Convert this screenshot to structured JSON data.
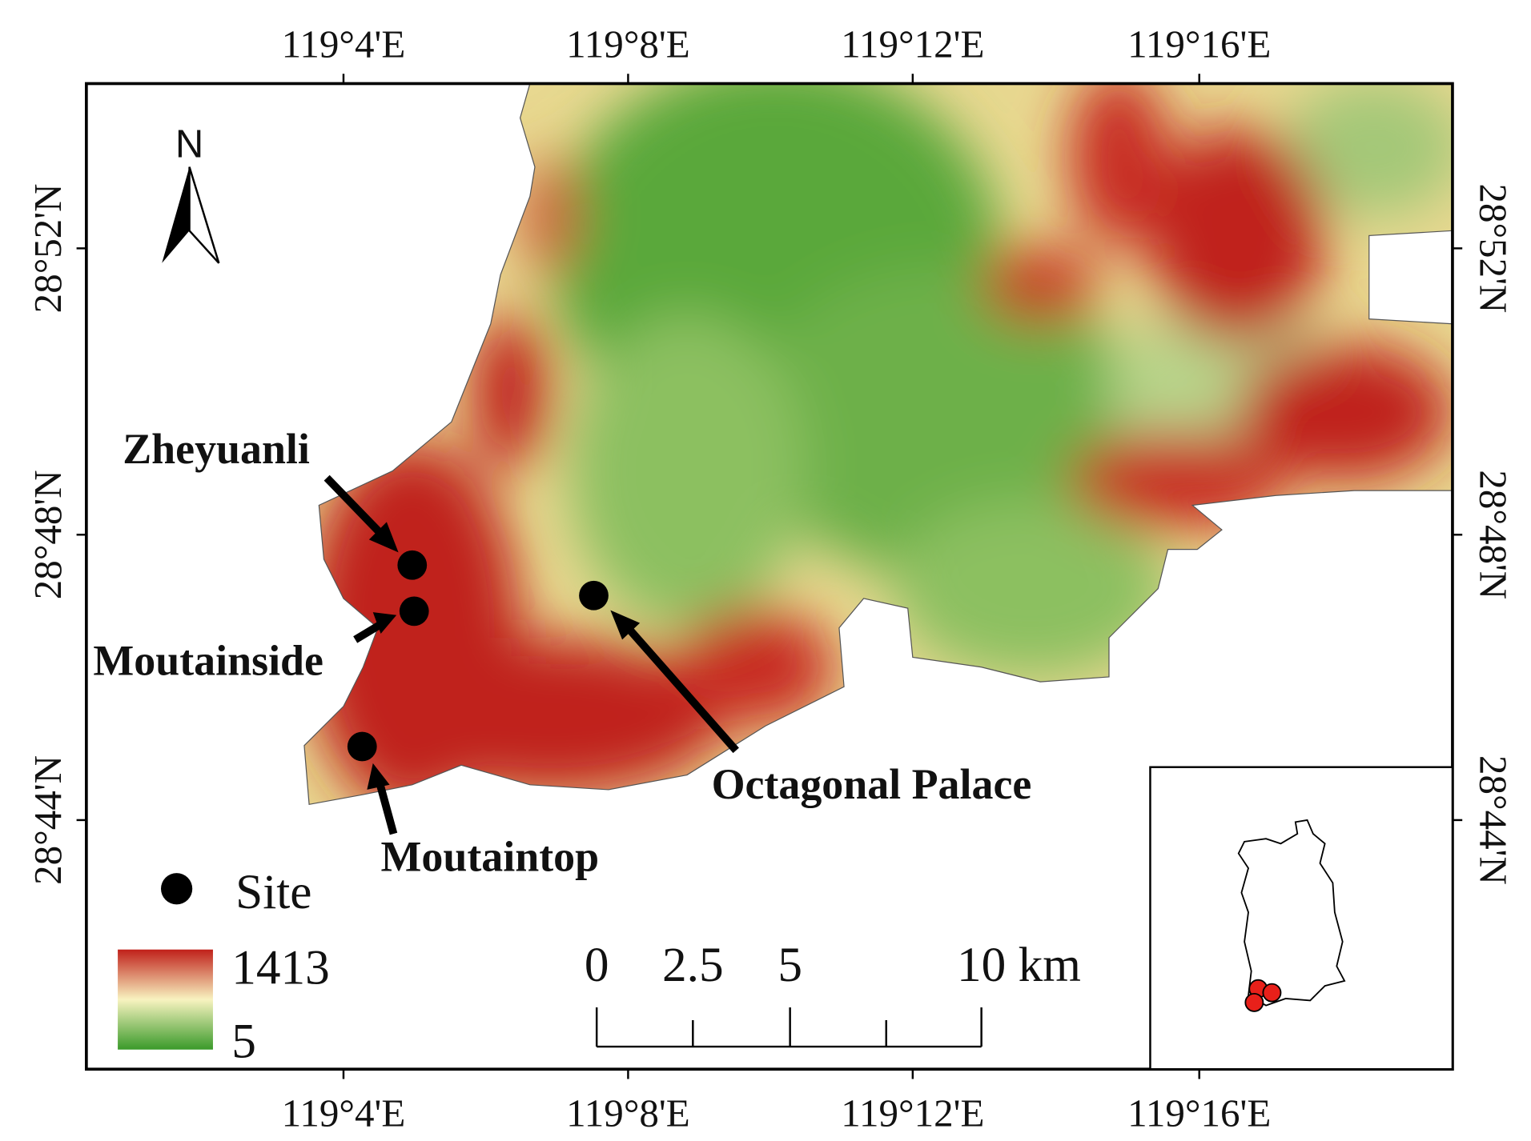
{
  "map": {
    "north": "N",
    "lon_ticks": [
      "119°4'E",
      "119°8'E",
      "119°12'E",
      "119°16'E"
    ],
    "lat_ticks": [
      "28°52'N",
      "28°48'N",
      "28°44'N"
    ],
    "sites": [
      {
        "label": "Zheyuanli"
      },
      {
        "label": "Moutainside"
      },
      {
        "label": "Moutaintop"
      },
      {
        "label": "Octagonal Palace"
      }
    ],
    "legend": {
      "site": "Site",
      "elev_max": "1413",
      "elev_min": "5"
    },
    "scale_bar": [
      "0",
      "2.5",
      "5",
      "10 km"
    ]
  }
}
